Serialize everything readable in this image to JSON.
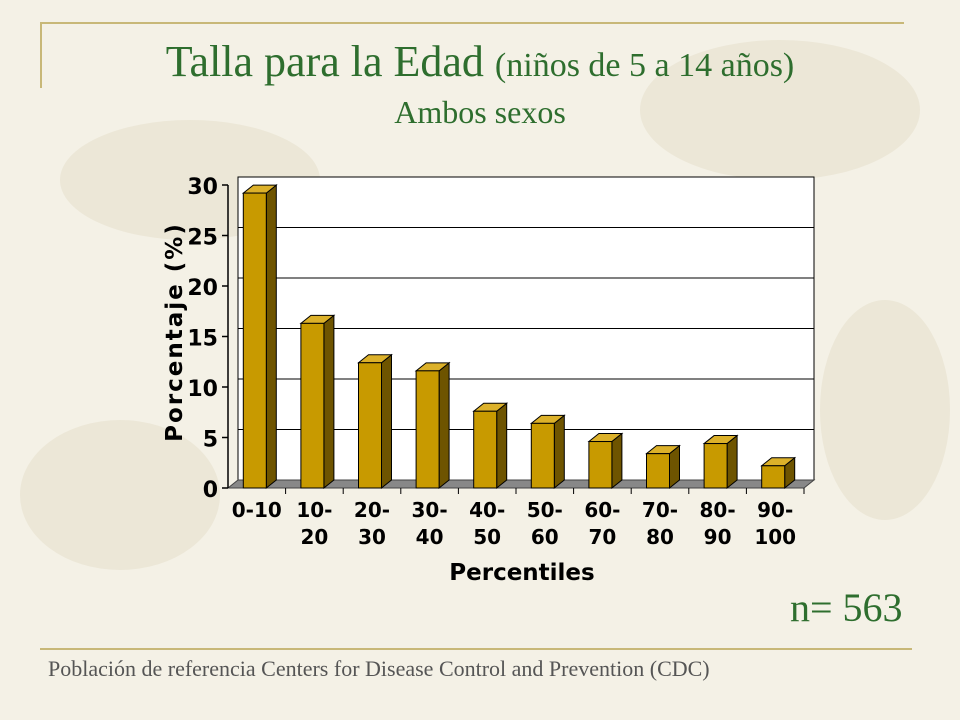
{
  "header": {
    "title_main": "Talla para la Edad",
    "title_paren": "(niños de 5 a 14 años)",
    "subtitle": "Ambos sexos"
  },
  "chart_data": {
    "type": "bar",
    "categories": [
      [
        "0-10"
      ],
      [
        "10-",
        "20"
      ],
      [
        "20-",
        "30"
      ],
      [
        "30-",
        "40"
      ],
      [
        "40-",
        "50"
      ],
      [
        "50-",
        "60"
      ],
      [
        "60-",
        "70"
      ],
      [
        "70-",
        "80"
      ],
      [
        "80-",
        "90"
      ],
      [
        "90-",
        "100"
      ]
    ],
    "values": [
      29.2,
      16.3,
      12.4,
      11.6,
      7.6,
      6.4,
      4.6,
      3.4,
      4.4,
      2.2
    ],
    "xlabel": "Percentiles",
    "ylabel": "Porcentaje (%)",
    "ylim": [
      0,
      30
    ],
    "yticks": [
      0,
      5,
      10,
      15,
      20,
      25,
      30
    ],
    "grid": true,
    "colors": {
      "bar_front": "#c89a00",
      "bar_top": "#dcb12a",
      "bar_side": "#6e5400",
      "grid": "#000000",
      "floor": "#888888"
    }
  },
  "annotation": {
    "n_label": "n= 563"
  },
  "footer": {
    "source": "Población de referencia Centers for Disease Control and Prevention (CDC)"
  }
}
